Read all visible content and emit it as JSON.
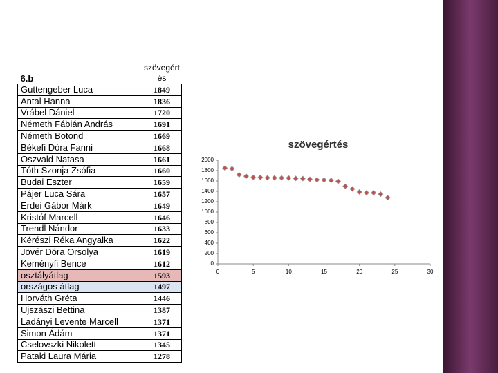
{
  "table": {
    "header": [
      "6.b",
      "szövegértés"
    ],
    "rows": [
      [
        "Guttengeber Luca",
        1849
      ],
      [
        "Antal Hanna",
        1836
      ],
      [
        "Vrábel Dániel",
        1720
      ],
      [
        "Németh Fábián András",
        1691
      ],
      [
        "Németh Botond",
        1669
      ],
      [
        "Békefi Dóra Fanni",
        1668
      ],
      [
        "Oszvald Natasa",
        1661
      ],
      [
        "Tóth Szonja Zsófia",
        1660
      ],
      [
        "Budai Eszter",
        1659
      ],
      [
        "Pájer Luca Sára",
        1657
      ],
      [
        "Erdei Gábor Márk",
        1649
      ],
      [
        "Kristóf Marcell",
        1646
      ],
      [
        "Trendl Nándor",
        1633
      ],
      [
        "Kérészi Réka Angyalka",
        1622
      ],
      [
        "Jövér Dóra Orsolya",
        1619
      ],
      [
        "Keményfi Bence",
        1612
      ],
      [
        "osztályátlag",
        1593
      ],
      [
        "országos átlag",
        1497
      ],
      [
        "Horváth Gréta",
        1446
      ],
      [
        "Ujszászi Bettina",
        1387
      ],
      [
        "Ladányi Levente Marcell",
        1371
      ],
      [
        "Simon Ádám",
        1371
      ],
      [
        "Cselovszki Nikolett",
        1345
      ],
      [
        "Pataki Laura Mária",
        1278
      ]
    ]
  },
  "chart_data": {
    "type": "scatter",
    "title": "szövegértés",
    "x": [
      1,
      2,
      3,
      4,
      5,
      6,
      7,
      8,
      9,
      10,
      11,
      12,
      13,
      14,
      15,
      16,
      17,
      18,
      19,
      20,
      21,
      22,
      23,
      24
    ],
    "series": [
      {
        "name": "szövegértés",
        "color": "#c0504d",
        "values": [
          1849,
          1836,
          1720,
          1691,
          1669,
          1668,
          1661,
          1660,
          1659,
          1657,
          1649,
          1646,
          1633,
          1622,
          1619,
          1612,
          1593,
          1497,
          1446,
          1387,
          1371,
          1371,
          1345,
          1278
        ]
      }
    ],
    "xlim": [
      0,
      30
    ],
    "xticks": [
      0,
      5,
      10,
      15,
      20,
      25,
      30
    ],
    "ylim": [
      0,
      2000
    ],
    "yticks": [
      0,
      200,
      400,
      600,
      800,
      1000,
      1200,
      1400,
      1600,
      1800,
      2000
    ]
  }
}
